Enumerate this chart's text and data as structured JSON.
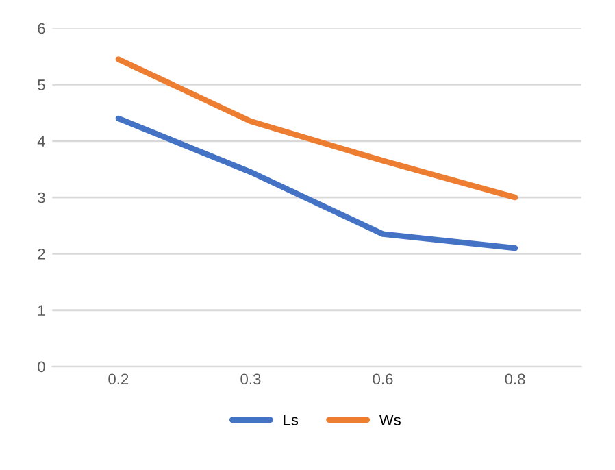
{
  "chart_data": {
    "type": "line",
    "categories": [
      "0.2",
      "0.3",
      "0.6",
      "0.8"
    ],
    "series": [
      {
        "name": "Ls",
        "color": "#4472c4",
        "values": [
          4.4,
          3.45,
          2.35,
          2.1
        ]
      },
      {
        "name": "Ws",
        "color": "#ed7d31",
        "values": [
          5.45,
          4.35,
          3.65,
          3.0
        ]
      }
    ],
    "ylim": [
      0,
      6
    ],
    "yticks": [
      0,
      1,
      2,
      3,
      4,
      5,
      6
    ],
    "grid": "y",
    "legend": "bottom",
    "marker": "none",
    "line_style": "solid"
  }
}
